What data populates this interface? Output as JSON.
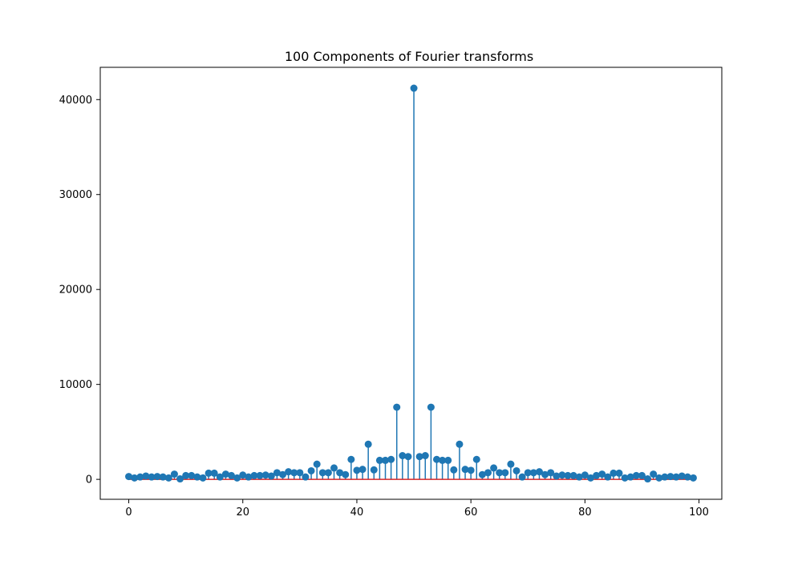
{
  "chart_data": {
    "type": "stem",
    "title": "100 Components of Fourier transforms",
    "xlabel": "",
    "ylabel": "",
    "xlim": [
      -5,
      104
    ],
    "ylim": [
      -2100,
      43400
    ],
    "xticks": [
      0,
      20,
      40,
      60,
      80,
      100
    ],
    "yticks": [
      0,
      10000,
      20000,
      30000,
      40000
    ],
    "grid": false,
    "colors": {
      "stem": "#1f77b4",
      "baseline": "#d62728"
    },
    "x": [
      0,
      1,
      2,
      3,
      4,
      5,
      6,
      7,
      8,
      9,
      10,
      11,
      12,
      13,
      14,
      15,
      16,
      17,
      18,
      19,
      20,
      21,
      22,
      23,
      24,
      25,
      26,
      27,
      28,
      29,
      30,
      31,
      32,
      33,
      34,
      35,
      36,
      37,
      38,
      39,
      40,
      41,
      42,
      43,
      44,
      45,
      46,
      47,
      48,
      49,
      50,
      51,
      52,
      53,
      54,
      55,
      56,
      57,
      58,
      59,
      60,
      61,
      62,
      63,
      64,
      65,
      66,
      67,
      68,
      69,
      70,
      71,
      72,
      73,
      74,
      75,
      76,
      77,
      78,
      79,
      80,
      81,
      82,
      83,
      84,
      85,
      86,
      87,
      88,
      89,
      90,
      91,
      92,
      93,
      94,
      95,
      96,
      97,
      98,
      99
    ],
    "values": [
      300,
      150,
      250,
      350,
      250,
      300,
      250,
      150,
      550,
      50,
      400,
      400,
      250,
      150,
      650,
      650,
      250,
      550,
      400,
      150,
      450,
      250,
      400,
      400,
      450,
      350,
      700,
      500,
      800,
      700,
      700,
      250,
      900,
      1600,
      700,
      700,
      1200,
      700,
      500,
      2100,
      950,
      1050,
      3700,
      1000,
      2000,
      2000,
      2100,
      7600,
      2500,
      2400,
      41200,
      2400,
      2500,
      7600,
      2100,
      2000,
      2000,
      1000,
      3700,
      1050,
      950,
      2100,
      500,
      700,
      1200,
      700,
      700,
      1600,
      900,
      250,
      700,
      700,
      800,
      500,
      700,
      350,
      450,
      400,
      400,
      250,
      450,
      150,
      400,
      550,
      250,
      650,
      650,
      150,
      250,
      400,
      400,
      50,
      550,
      150,
      250,
      300,
      250,
      350,
      250,
      150
    ]
  }
}
